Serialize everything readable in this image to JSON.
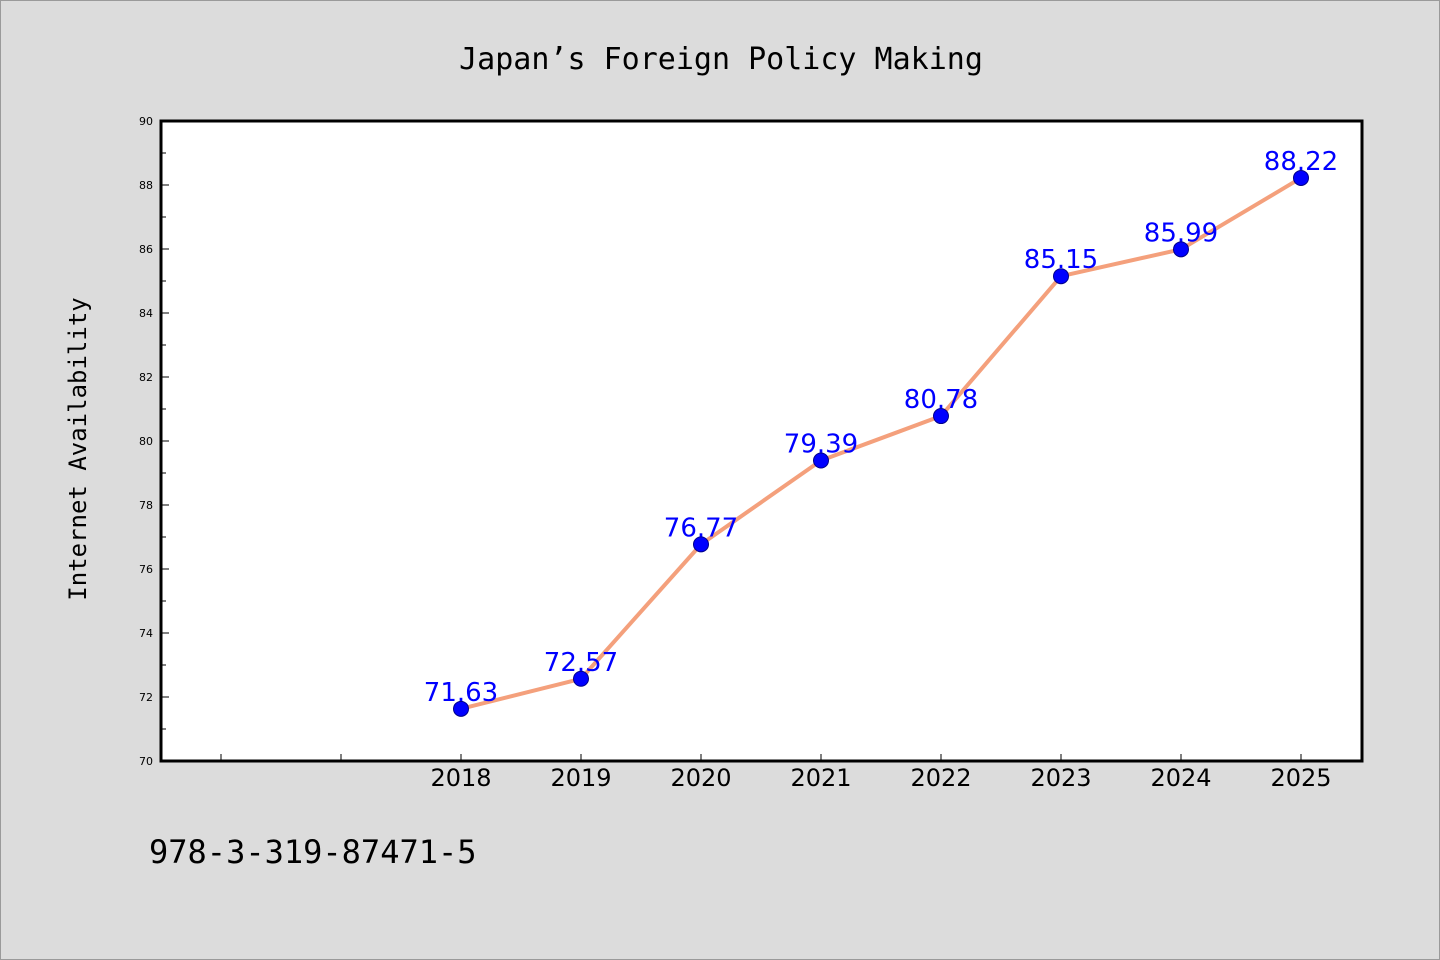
{
  "chart_data": {
    "type": "line",
    "title": "Japan’s Foreign Policy Making",
    "xlabel": "",
    "ylabel": "Internet Availability",
    "categories": [
      "",
      "",
      "2018",
      "2019",
      "2020",
      "2021",
      "2022",
      "2023",
      "2024",
      "2025"
    ],
    "series": [
      {
        "x": [
          "2018",
          "2019",
          "2020",
          "2021",
          "2022",
          "2023",
          "2024",
          "2025"
        ],
        "values": [
          71.63,
          72.57,
          76.77,
          79.39,
          80.78,
          85.15,
          85.99,
          88.22
        ],
        "labels": [
          "71.63",
          "72.57",
          "76.77",
          "79.39",
          "80.78",
          "85.15",
          "85.99",
          "88.22"
        ]
      }
    ],
    "ylim": [
      70,
      90
    ],
    "yticks": [
      "70",
      "72",
      "74",
      "76",
      "78",
      "80",
      "82",
      "84",
      "86",
      "88",
      "90"
    ],
    "grid": false,
    "colors": {
      "line": "#f4a07c",
      "marker": "#0000ff",
      "marker_edge": "#00008b",
      "data_label": "#0000ff",
      "background": "#dcdcdc",
      "plot_background": "#ffffff"
    }
  },
  "footer": {
    "isbn": "978-3-319-87471-5"
  }
}
